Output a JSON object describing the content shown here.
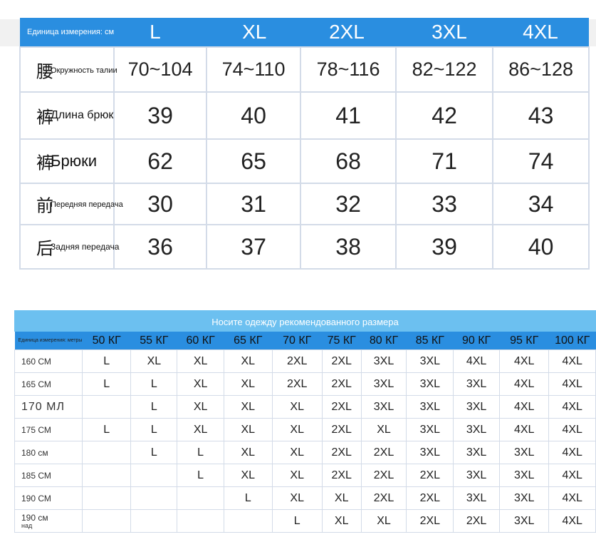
{
  "size_table": {
    "unit_label": "Единица измерения: см",
    "sizes": [
      "L",
      "XL",
      "2XL",
      "3XL",
      "4XL"
    ],
    "rows": [
      {
        "glyph": "腰",
        "label": "Окружность талии",
        "values": [
          "70~104",
          "74~110",
          "78~116",
          "82~122",
          "86~128"
        ]
      },
      {
        "glyph": "裤",
        "label": "Длина брюк",
        "values": [
          "39",
          "40",
          "41",
          "42",
          "43"
        ]
      },
      {
        "glyph": "裤",
        "label": "Брюки",
        "values": [
          "62",
          "65",
          "68",
          "71",
          "74"
        ]
      },
      {
        "glyph": "前",
        "label": "Передняя передача",
        "values": [
          "30",
          "31",
          "32",
          "33",
          "34"
        ]
      },
      {
        "glyph": "后",
        "label": "Задняя передача",
        "values": [
          "36",
          "37",
          "38",
          "39",
          "40"
        ]
      }
    ]
  },
  "recommend_table": {
    "title": "Носите одежду рекомендованного размера",
    "corner_label": "Единица измерения: метры",
    "weights": [
      "50 КГ",
      "55 КГ",
      "60 КГ",
      "65 КГ",
      "70 КГ",
      "75 КГ",
      "80 КГ",
      "85 КГ",
      "90 КГ",
      "95 КГ",
      "100 КГ"
    ],
    "rows": [
      {
        "height": "160 СМ",
        "cells": [
          "L",
          "XL",
          "XL",
          "XL",
          "2XL",
          "2XL",
          "3XL",
          "3XL",
          "4XL",
          "4XL",
          "4XL"
        ]
      },
      {
        "height": "165 СМ",
        "cells": [
          "L",
          "L",
          "XL",
          "XL",
          "2XL",
          "2XL",
          "3XL",
          "3XL",
          "3XL",
          "4XL",
          "4XL"
        ]
      },
      {
        "height": "170 МЛ",
        "cells": [
          "",
          "L",
          "XL",
          "XL",
          "XL",
          "2XL",
          "3XL",
          "3XL",
          "3XL",
          "4XL",
          "4XL"
        ]
      },
      {
        "height": "175 СМ",
        "cells": [
          "L",
          "L",
          "XL",
          "XL",
          "XL",
          "2XL",
          "XL",
          "3XL",
          "3XL",
          "4XL",
          "4XL"
        ]
      },
      {
        "height": "180 см",
        "cells": [
          "",
          "L",
          "L",
          "XL",
          "XL",
          "2XL",
          "2XL",
          "3XL",
          "3XL",
          "3XL",
          "4XL"
        ]
      },
      {
        "height": "185 СМ",
        "cells": [
          "",
          "",
          "L",
          "XL",
          "XL",
          "2XL",
          "2XL",
          "2XL",
          "3XL",
          "3XL",
          "4XL"
        ]
      },
      {
        "height": "190 СМ",
        "cells": [
          "",
          "",
          "",
          "L",
          "XL",
          "XL",
          "2XL",
          "2XL",
          "3XL",
          "3XL",
          "4XL"
        ]
      },
      {
        "height": "190 см",
        "sub": "над",
        "cells": [
          "",
          "",
          "",
          "",
          "L",
          "XL",
          "XL",
          "2XL",
          "2XL",
          "3XL",
          "4XL"
        ]
      }
    ]
  },
  "colors": {
    "header_blue": "#2a8ee0",
    "title_blue": "#6cc0f0",
    "border": "#d3dbe8"
  }
}
